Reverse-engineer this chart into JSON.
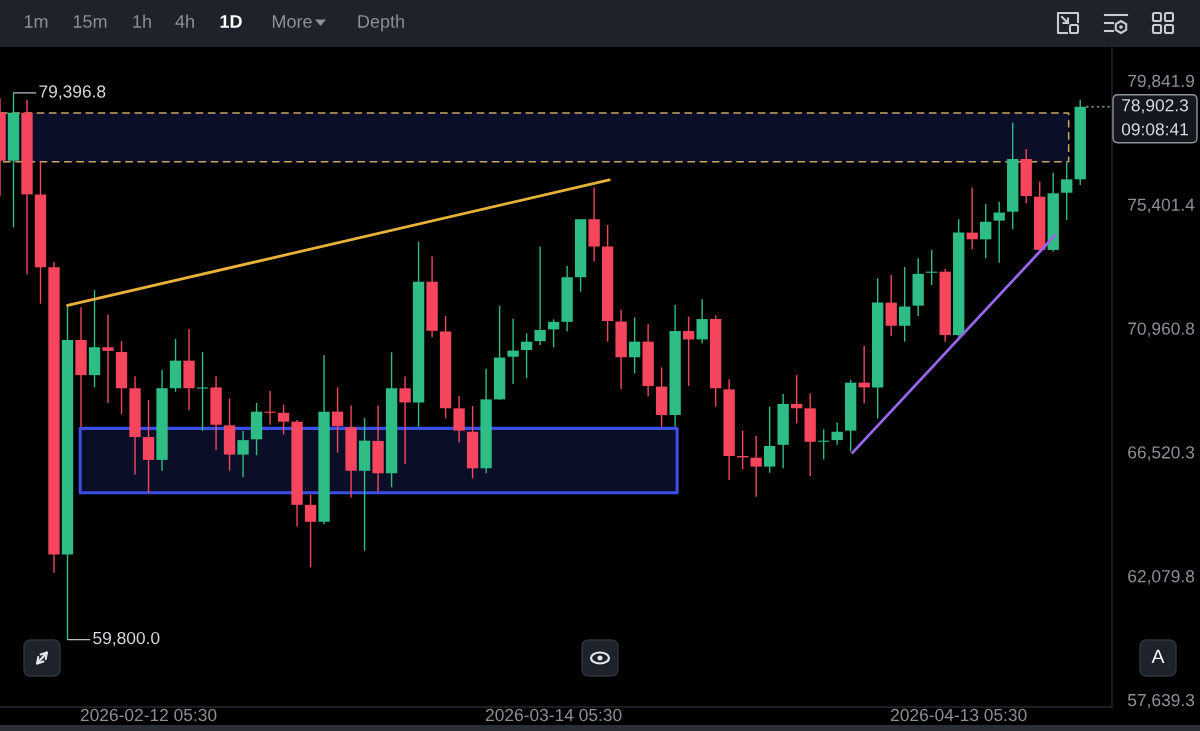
{
  "chart_data": {
    "type": "candlestick",
    "x": [
      "2026-02-01T05:30",
      "2026-02-02T05:30",
      "2026-02-03T05:30",
      "2026-02-04T05:30",
      "2026-02-05T05:30",
      "2026-02-06T05:30",
      "2026-02-07T05:30",
      "2026-02-08T05:30",
      "2026-02-09T05:30",
      "2026-02-10T05:30",
      "2026-02-11T05:30",
      "2026-02-12T05:30",
      "2026-02-13T05:30",
      "2026-02-14T05:30",
      "2026-02-15T05:30",
      "2026-02-16T05:30",
      "2026-02-17T05:30",
      "2026-02-18T05:30",
      "2026-02-19T05:30",
      "2026-02-20T05:30",
      "2026-02-21T05:30",
      "2026-02-22T05:30",
      "2026-02-23T05:30",
      "2026-02-24T05:30",
      "2026-02-25T05:30",
      "2026-02-26T05:30",
      "2026-02-27T05:30",
      "2026-02-28T05:30",
      "2026-03-01T05:30",
      "2026-03-02T05:30",
      "2026-03-03T05:30",
      "2026-03-04T05:30",
      "2026-03-05T05:30",
      "2026-03-06T05:30",
      "2026-03-07T05:30",
      "2026-03-08T05:30",
      "2026-03-09T05:30",
      "2026-03-10T05:30",
      "2026-03-11T05:30",
      "2026-03-12T05:30",
      "2026-03-13T05:30",
      "2026-03-14T05:30",
      "2026-03-15T05:30",
      "2026-03-16T05:30",
      "2026-03-17T05:30",
      "2026-03-18T05:30",
      "2026-03-19T05:30",
      "2026-03-20T05:30",
      "2026-03-21T05:30",
      "2026-03-22T05:30",
      "2026-03-23T05:30",
      "2026-03-24T05:30",
      "2026-03-25T05:30",
      "2026-03-26T05:30",
      "2026-03-27T05:30",
      "2026-03-28T05:30",
      "2026-03-29T05:30",
      "2026-03-30T05:30",
      "2026-03-31T05:30",
      "2026-04-01T05:30",
      "2026-04-02T05:30",
      "2026-04-03T05:30",
      "2026-04-04T05:30",
      "2026-04-05T05:30",
      "2026-04-06T05:30",
      "2026-04-07T05:30",
      "2026-04-08T05:30",
      "2026-04-09T05:30",
      "2026-04-10T05:30",
      "2026-04-11T05:30",
      "2026-04-12T05:30",
      "2026-04-13T05:30",
      "2026-04-14T05:30",
      "2026-04-15T05:30",
      "2026-04-16T05:30",
      "2026-04-17T05:30",
      "2026-04-18T05:30",
      "2026-04-19T05:30",
      "2026-04-20T05:30",
      "2026-04-21T05:30",
      "2026-04-22T05:30"
    ],
    "ohlc": [
      [
        78690,
        79210,
        75690,
        76970
      ],
      [
        76970,
        79396.8,
        74580,
        78690
      ],
      [
        78690,
        79150,
        72890,
        75760
      ],
      [
        75760,
        76930,
        71840,
        73150
      ],
      [
        73150,
        73340,
        62190,
        62850
      ],
      [
        62850,
        71780,
        59800,
        70540
      ],
      [
        70540,
        71710,
        67410,
        69280
      ],
      [
        69280,
        72330,
        68840,
        70280
      ],
      [
        70280,
        71450,
        68280,
        70150
      ],
      [
        70110,
        70500,
        67890,
        68810
      ],
      [
        68810,
        69240,
        65720,
        67060
      ],
      [
        67060,
        68390,
        65060,
        66240
      ],
      [
        66240,
        69470,
        65850,
        68810
      ],
      [
        68810,
        70580,
        68680,
        69800
      ],
      [
        69800,
        70930,
        68020,
        68810
      ],
      [
        68800,
        70110,
        67280,
        68840
      ],
      [
        68840,
        69240,
        66590,
        67500
      ],
      [
        67480,
        68450,
        65850,
        66430
      ],
      [
        66430,
        67280,
        65620,
        66950
      ],
      [
        66980,
        68280,
        66410,
        67970
      ],
      [
        67970,
        68710,
        67500,
        67930
      ],
      [
        67930,
        68220,
        67150,
        67610
      ],
      [
        67610,
        67670,
        63850,
        64630
      ],
      [
        64630,
        65000,
        62390,
        64020
      ],
      [
        64020,
        69990,
        63930,
        67970
      ],
      [
        67970,
        68840,
        66500,
        67450
      ],
      [
        67410,
        68190,
        64890,
        65850
      ],
      [
        65850,
        67740,
        62980,
        66930
      ],
      [
        66920,
        68190,
        65100,
        65760
      ],
      [
        65760,
        70100,
        65260,
        68810
      ],
      [
        68810,
        69230,
        66090,
        68300
      ],
      [
        68300,
        74070,
        67430,
        72630
      ],
      [
        72630,
        73530,
        70640,
        70870
      ],
      [
        70840,
        71400,
        67730,
        68090
      ],
      [
        68090,
        68530,
        66860,
        67290
      ],
      [
        67250,
        68170,
        65580,
        65940
      ],
      [
        65940,
        69510,
        65760,
        68410
      ],
      [
        68410,
        71770,
        68390,
        69910
      ],
      [
        69940,
        71300,
        68960,
        70160
      ],
      [
        70180,
        70780,
        69170,
        70480
      ],
      [
        70500,
        73890,
        70360,
        70900
      ],
      [
        70920,
        71280,
        70280,
        71190
      ],
      [
        71190,
        73190,
        70840,
        72790
      ],
      [
        72790,
        74870,
        72270,
        74870
      ],
      [
        74870,
        76010,
        73350,
        73890
      ],
      [
        73890,
        74660,
        70480,
        71220
      ],
      [
        71200,
        71620,
        68770,
        69920
      ],
      [
        69920,
        71350,
        69340,
        70480
      ],
      [
        70480,
        71110,
        68510,
        68890
      ],
      [
        68870,
        69560,
        67430,
        67850
      ],
      [
        67850,
        71800,
        67430,
        70860
      ],
      [
        70860,
        71380,
        68890,
        70560
      ],
      [
        70560,
        72000,
        70420,
        71290
      ],
      [
        71290,
        71420,
        68150,
        68810
      ],
      [
        68770,
        69130,
        65520,
        66380
      ],
      [
        66380,
        67290,
        65900,
        66330
      ],
      [
        66320,
        67100,
        64920,
        66000
      ],
      [
        66000,
        68150,
        65780,
        66740
      ],
      [
        66780,
        68600,
        65940,
        68250
      ],
      [
        68250,
        69290,
        67550,
        68090
      ],
      [
        68090,
        68630,
        65660,
        66890
      ],
      [
        66890,
        67340,
        66260,
        66930
      ],
      [
        66950,
        67580,
        66780,
        67250
      ],
      [
        67290,
        69110,
        66540,
        69010
      ],
      [
        69010,
        70330,
        68270,
        68840
      ],
      [
        68840,
        72750,
        67730,
        71880
      ],
      [
        71880,
        72870,
        70680,
        71050
      ],
      [
        71050,
        73150,
        70480,
        71740
      ],
      [
        71770,
        73470,
        71400,
        72910
      ],
      [
        72950,
        73770,
        72510,
        72990
      ],
      [
        72990,
        73090,
        70480,
        70720
      ],
      [
        70720,
        74870,
        70660,
        74390
      ],
      [
        74390,
        76010,
        73790,
        74150
      ],
      [
        74150,
        75420,
        73470,
        74780
      ],
      [
        74820,
        75500,
        73310,
        75110
      ],
      [
        75140,
        78330,
        74510,
        77030
      ],
      [
        77030,
        77390,
        75440,
        75700
      ],
      [
        75680,
        76220,
        73770,
        73770
      ],
      [
        73770,
        76540,
        73710,
        75800
      ],
      [
        75820,
        76900,
        74840,
        76300
      ],
      [
        76300,
        79150,
        76100,
        78902.3
      ]
    ],
    "colors": [
      "#f6465d",
      "#2ebd85",
      "#f6465d",
      "#f6465d",
      "#f6465d",
      "#2ebd85",
      "#f6465d",
      "#2ebd85",
      "#f6465d",
      "#f6465d",
      "#f6465d",
      "#f6465d",
      "#2ebd85",
      "#2ebd85",
      "#f6465d",
      "#2ebd85",
      "#f6465d",
      "#f6465d",
      "#2ebd85",
      "#2ebd85",
      "#f6465d",
      "#f6465d",
      "#f6465d",
      "#f6465d",
      "#2ebd85",
      "#f6465d",
      "#f6465d",
      "#2ebd85",
      "#f6465d",
      "#2ebd85",
      "#f6465d",
      "#2ebd85",
      "#f6465d",
      "#f6465d",
      "#f6465d",
      "#f6465d",
      "#2ebd85",
      "#2ebd85",
      "#2ebd85",
      "#2ebd85",
      "#2ebd85",
      "#2ebd85",
      "#2ebd85",
      "#2ebd85",
      "#f6465d",
      "#f6465d",
      "#f6465d",
      "#2ebd85",
      "#f6465d",
      "#f6465d",
      "#2ebd85",
      "#f6465d",
      "#2ebd85",
      "#f6465d",
      "#f6465d",
      "#f6465d",
      "#f6465d",
      "#2ebd85",
      "#2ebd85",
      "#f6465d",
      "#f6465d",
      "#2ebd85",
      "#2ebd85",
      "#2ebd85",
      "#f6465d",
      "#2ebd85",
      "#f6465d",
      "#2ebd85",
      "#2ebd85",
      "#2ebd85",
      "#f6465d",
      "#2ebd85",
      "#f6465d",
      "#2ebd85",
      "#2ebd85",
      "#2ebd85",
      "#f6465d",
      "#f6465d",
      "#2ebd85",
      "#2ebd85",
      "#2ebd85"
    ],
    "series": [
      {
        "type": "line",
        "x": [
          "2026-02-06T05:30",
          "2026-03-18T08:30"
        ],
        "values": [
          71780,
          76280
        ],
        "color": "#e8b23a",
        "line_style": "solid"
      },
      {
        "type": "line",
        "x": [
          "2026-04-05T09:00",
          "2026-04-20T09:00"
        ],
        "values": [
          66500,
          74300
        ],
        "color": "#9966ee",
        "line_style": "solid"
      },
      {
        "type": "area",
        "x": [
          "2026-02-07T04:00",
          "2026-03-23T09:00",
          "2026-03-23T09:00",
          "2026-02-07T04:00",
          "2026-02-07T04:00"
        ],
        "values": [
          67370,
          67370,
          65060,
          65060,
          67370
        ],
        "color": "#3b4fe6",
        "line_style": "solid"
      },
      {
        "type": "area",
        "x": [
          "2026-02-01T05:30",
          "2026-04-21T09:00",
          "2026-04-21T09:00",
          "2026-02-01T05:30"
        ],
        "values": [
          78680,
          78680,
          76930,
          76930
        ],
        "color": "#c9a563",
        "line_style": "dashed"
      },
      {
        "type": "line",
        "x": [
          "2026-04-22T16:00",
          "2026-04-24T14:00"
        ],
        "values": [
          78902.3,
          78902.3
        ],
        "color": "#8d929a",
        "line_style": "dotted"
      }
    ],
    "xlim": [
      "2026-02-01T05:30",
      "2026-04-24T14:00"
    ],
    "xticks": [
      {
        "value": "2026-02-12T05:30",
        "label": "2026-02-12 05:30"
      },
      {
        "value": "2026-03-14T05:30",
        "label": "2026-03-14 05:30"
      },
      {
        "value": "2026-04-13T05:30",
        "label": "2026-04-13 05:30"
      }
    ],
    "ylim": [
      57380,
      81010
    ],
    "yticks": [
      {
        "value": 57639.3,
        "label": "57,639.3"
      },
      {
        "value": 62079.8,
        "label": "62,079.8"
      },
      {
        "value": 66520.3,
        "label": "66,520.3"
      },
      {
        "value": 70960.8,
        "label": "70,960.8"
      },
      {
        "value": 75401.4,
        "label": "75,401.4"
      },
      {
        "value": 79841.9,
        "label": "79,841.9"
      }
    ],
    "annotations": [
      {
        "text": "79,396.8",
        "x": "2026-02-02T05:30",
        "y": 79396.8
      },
      {
        "text": "59,800.0",
        "x": "2026-02-06T05:30",
        "y": 59800
      },
      {
        "text": "78,902.3",
        "x": "2026-04-24T14:00",
        "y": 78902.3
      },
      "09:08:41",
      "1m",
      "15m",
      "1h",
      "4h",
      "1D",
      "More",
      "Depth",
      "A"
    ],
    "grid": false
  }
}
